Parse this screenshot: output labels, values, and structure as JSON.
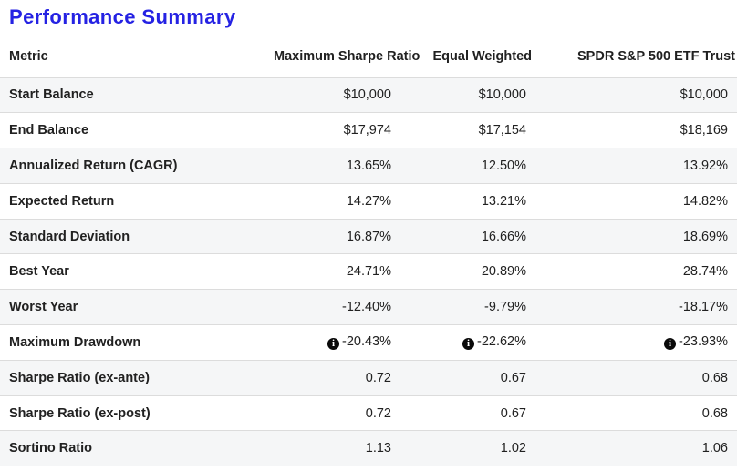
{
  "title": "Performance Summary",
  "accent_color": "#2522e3",
  "stripe_color": "#f5f6f7",
  "border_color": "#dcdcdc",
  "info_icon": {
    "name": "info-circle-icon",
    "glyph": "i"
  },
  "table": {
    "columns": [
      "Metric",
      "Maximum Sharpe Ratio",
      "Equal Weighted",
      "SPDR S&P 500 ETF Trust"
    ],
    "rows": [
      {
        "metric": "Start Balance",
        "values": [
          "$10,000",
          "$10,000",
          "$10,000"
        ],
        "info": false
      },
      {
        "metric": "End Balance",
        "values": [
          "$17,974",
          "$17,154",
          "$18,169"
        ],
        "info": false
      },
      {
        "metric": "Annualized Return (CAGR)",
        "values": [
          "13.65%",
          "12.50%",
          "13.92%"
        ],
        "info": false
      },
      {
        "metric": "Expected Return",
        "values": [
          "14.27%",
          "13.21%",
          "14.82%"
        ],
        "info": false
      },
      {
        "metric": "Standard Deviation",
        "values": [
          "16.87%",
          "16.66%",
          "18.69%"
        ],
        "info": false
      },
      {
        "metric": "Best Year",
        "values": [
          "24.71%",
          "20.89%",
          "28.74%"
        ],
        "info": false
      },
      {
        "metric": "Worst Year",
        "values": [
          "-12.40%",
          "-9.79%",
          "-18.17%"
        ],
        "info": false
      },
      {
        "metric": "Maximum Drawdown",
        "values": [
          "-20.43%",
          "-22.62%",
          "-23.93%"
        ],
        "info": true
      },
      {
        "metric": "Sharpe Ratio (ex-ante)",
        "values": [
          "0.72",
          "0.67",
          "0.68"
        ],
        "info": false
      },
      {
        "metric": "Sharpe Ratio (ex-post)",
        "values": [
          "0.72",
          "0.67",
          "0.68"
        ],
        "info": false
      },
      {
        "metric": "Sortino Ratio",
        "values": [
          "1.13",
          "1.02",
          "1.06"
        ],
        "info": false
      }
    ]
  }
}
